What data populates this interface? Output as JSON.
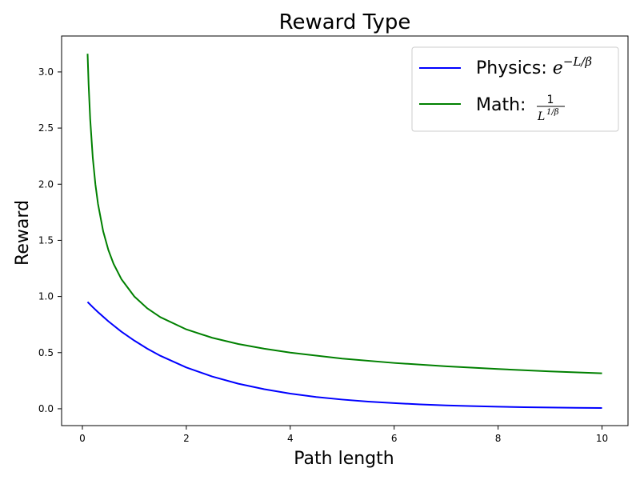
{
  "chart_data": {
    "type": "line",
    "title": "Reward Type",
    "xlabel": "Path length",
    "ylabel": "Reward",
    "xlim": [
      -0.4,
      10.5
    ],
    "ylim": [
      -0.15,
      3.32
    ],
    "xticks": [
      0,
      2,
      4,
      6,
      8,
      10
    ],
    "xtick_labels": [
      "0",
      "2",
      "4",
      "6",
      "8",
      "10"
    ],
    "yticks": [
      0.0,
      0.5,
      1.0,
      1.5,
      2.0,
      2.5,
      3.0
    ],
    "ytick_labels": [
      "0.0",
      "0.5",
      "1.0",
      "1.5",
      "2.0",
      "2.5",
      "3.0"
    ],
    "grid": false,
    "legend_position": "top-right",
    "series": [
      {
        "name": "Physics: e^{-L/β}",
        "legend_prefix": "Physics: ",
        "color": "#0000ff",
        "x": [
          0.1,
          0.2,
          0.3,
          0.5,
          0.75,
          1.0,
          1.25,
          1.5,
          2.0,
          2.5,
          3.0,
          3.5,
          4.0,
          4.5,
          5.0,
          5.5,
          6.0,
          6.5,
          7.0,
          7.5,
          8.0,
          8.5,
          9.0,
          9.5,
          10.0
        ],
        "values": [
          0.951,
          0.905,
          0.861,
          0.779,
          0.687,
          0.607,
          0.535,
          0.472,
          0.368,
          0.287,
          0.223,
          0.174,
          0.135,
          0.105,
          0.082,
          0.064,
          0.05,
          0.039,
          0.03,
          0.024,
          0.018,
          0.014,
          0.011,
          0.009,
          0.007
        ]
      },
      {
        "name": "Math: 1/L^{1/β}",
        "legend_prefix": "Math: ",
        "color": "#008000",
        "x": [
          0.1,
          0.12,
          0.15,
          0.2,
          0.25,
          0.3,
          0.4,
          0.5,
          0.6,
          0.75,
          1.0,
          1.25,
          1.5,
          2.0,
          2.5,
          3.0,
          3.5,
          4.0,
          5.0,
          6.0,
          7.0,
          8.0,
          9.0,
          10.0
        ],
        "values": [
          3.162,
          2.887,
          2.582,
          2.236,
          2.0,
          1.826,
          1.581,
          1.414,
          1.291,
          1.155,
          1.0,
          0.894,
          0.816,
          0.707,
          0.632,
          0.577,
          0.535,
          0.5,
          0.447,
          0.408,
          0.378,
          0.354,
          0.333,
          0.316
        ]
      }
    ]
  }
}
